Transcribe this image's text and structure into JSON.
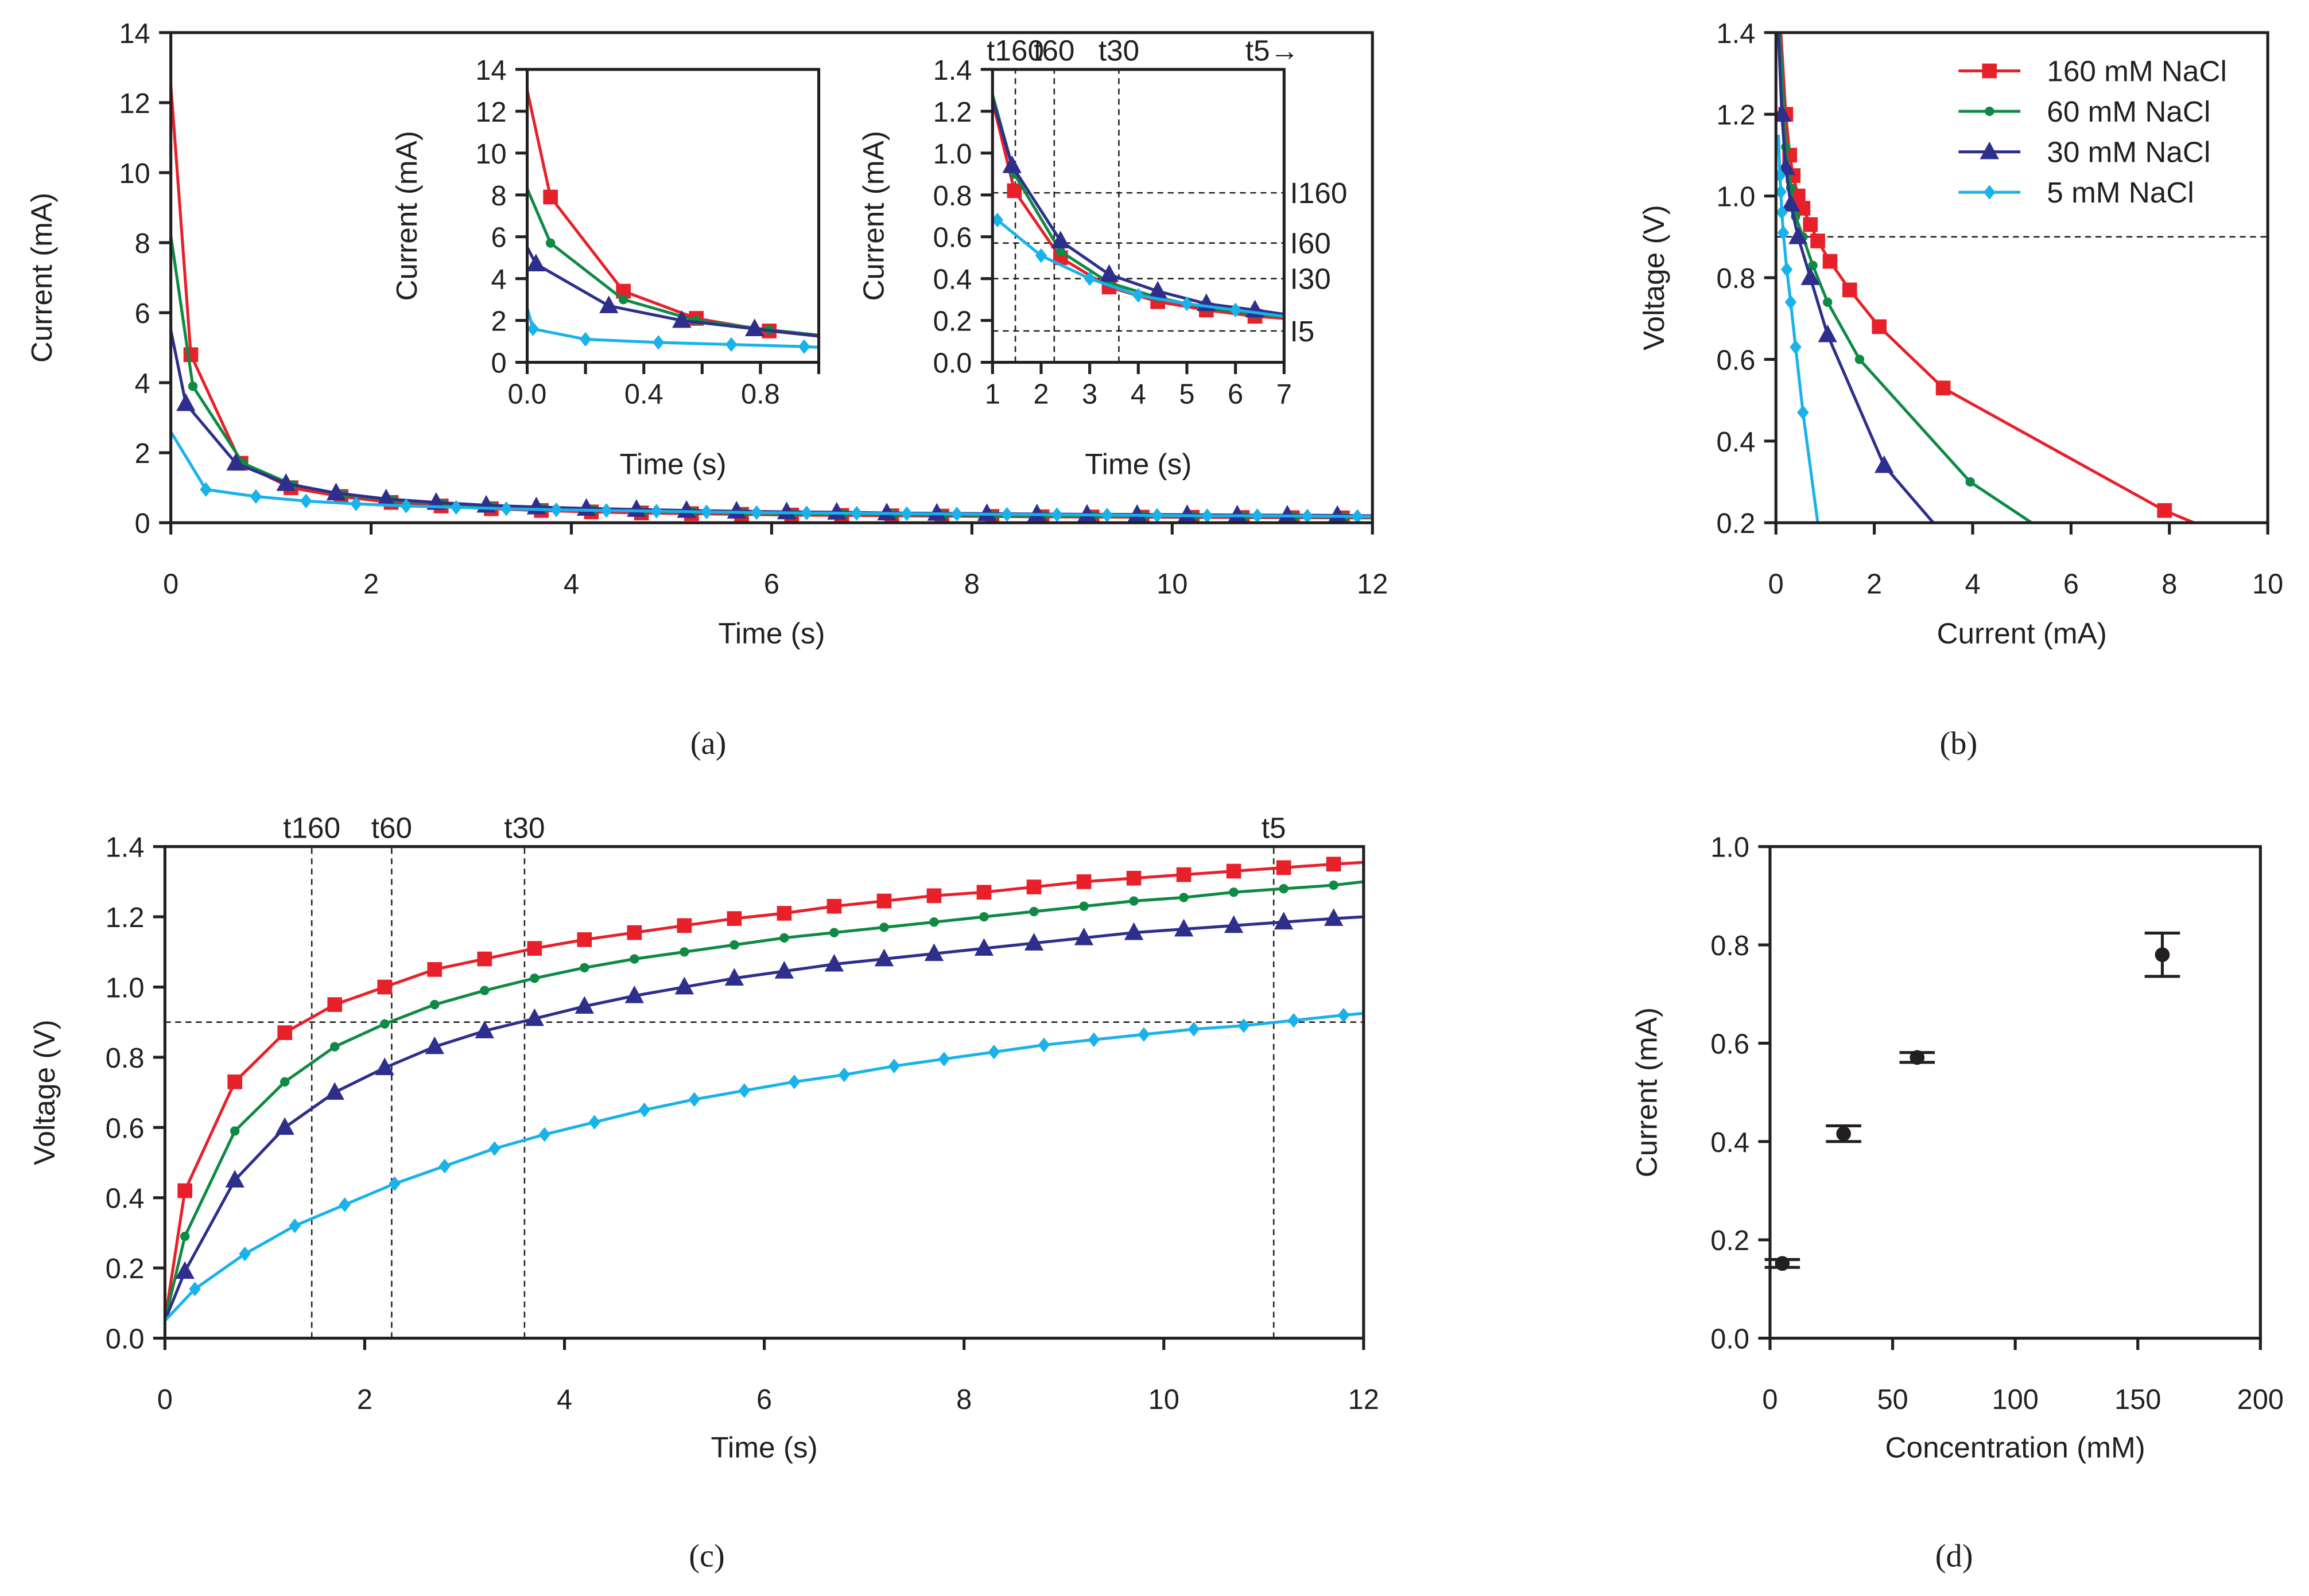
{
  "chart_data": [
    {
      "id": "a",
      "type": "line",
      "caption": "(a)",
      "xlabel": "Time (s)",
      "ylabel": "Current (mA)",
      "xlim": [
        0,
        12
      ],
      "ylim": [
        0,
        14
      ],
      "xticks": [
        "0",
        "2",
        "4",
        "6",
        "8",
        "10",
        "12"
      ],
      "yticks": [
        "0",
        "2",
        "4",
        "6",
        "8",
        "10",
        "12",
        "14"
      ],
      "series": [
        {
          "name": "160 mM NaCl",
          "color": "#e8202a",
          "marker": "square",
          "start": [
            0,
            12.5
          ],
          "end": [
            12,
            0.14
          ],
          "x": {
            "start": 0.2,
            "step": 0.5
          },
          "y": [
            4.8,
            1.7,
            1.0,
            0.75,
            0.58,
            0.48,
            0.4,
            0.35,
            0.31,
            0.28,
            0.26,
            0.24,
            0.22,
            0.21,
            0.2,
            0.19,
            0.18,
            0.17,
            0.165,
            0.16,
            0.155,
            0.15,
            0.145,
            0.14
          ]
        },
        {
          "name": "60 mM NaCl",
          "color": "#0f8a45",
          "marker": "circle",
          "start": [
            0,
            8.2
          ],
          "end": [
            12,
            0.16
          ],
          "x": {
            "start": 0.22,
            "step": 0.5
          },
          "y": [
            3.9,
            1.7,
            1.08,
            0.8,
            0.64,
            0.54,
            0.46,
            0.41,
            0.37,
            0.33,
            0.3,
            0.28,
            0.26,
            0.25,
            0.23,
            0.22,
            0.21,
            0.2,
            0.19,
            0.185,
            0.18,
            0.175,
            0.17,
            0.165
          ]
        },
        {
          "name": "30 mM NaCl",
          "color": "#2e2f8c",
          "marker": "triangle",
          "start": [
            0,
            5.5
          ],
          "end": [
            12,
            0.2
          ],
          "x": {
            "start": 0.15,
            "step": 0.5
          },
          "y": [
            3.4,
            1.7,
            1.12,
            0.85,
            0.68,
            0.58,
            0.5,
            0.45,
            0.41,
            0.38,
            0.35,
            0.33,
            0.31,
            0.3,
            0.28,
            0.27,
            0.26,
            0.25,
            0.24,
            0.235,
            0.23,
            0.22,
            0.215,
            0.21
          ]
        },
        {
          "name": "5 mM NaCl",
          "color": "#19b2ea",
          "marker": "diamond",
          "start": [
            0,
            2.6
          ],
          "end": [
            12,
            0.18
          ],
          "x": {
            "start": 0.35,
            "step": 0.5
          },
          "y": [
            0.95,
            0.75,
            0.62,
            0.54,
            0.48,
            0.44,
            0.4,
            0.37,
            0.35,
            0.33,
            0.31,
            0.29,
            0.28,
            0.27,
            0.26,
            0.25,
            0.24,
            0.23,
            0.22,
            0.21,
            0.2,
            0.2,
            0.19,
            0.18
          ]
        }
      ]
    },
    {
      "id": "a-inset-early",
      "type": "line",
      "xlabel": "Time (s)",
      "ylabel": "Current (mA)",
      "xlim": [
        0,
        1
      ],
      "ylim": [
        0,
        14
      ],
      "xticks": [
        "0.0",
        "0.4",
        "0.8"
      ],
      "xminor": [
        0.2,
        0.6,
        1.0
      ],
      "yticks": [
        "0",
        "2",
        "4",
        "6",
        "8",
        "10",
        "12",
        "14"
      ],
      "series": [
        {
          "name": "160 mM NaCl",
          "color": "#e8202a",
          "marker": "square",
          "start": [
            0,
            13
          ],
          "end": [
            1,
            1.25
          ],
          "x": [
            0.08,
            0.33,
            0.58,
            0.83
          ],
          "y": [
            7.9,
            3.4,
            2.1,
            1.5
          ]
        },
        {
          "name": "60 mM NaCl",
          "color": "#0f8a45",
          "marker": "circle",
          "start": [
            0,
            8.3
          ],
          "end": [
            1,
            1.3
          ],
          "x": [
            0.08,
            0.33,
            0.58,
            0.83
          ],
          "y": [
            5.7,
            3.0,
            2.0,
            1.55
          ]
        },
        {
          "name": "30 mM NaCl",
          "color": "#2e2f8c",
          "marker": "triangle",
          "start": [
            0,
            5.5
          ],
          "end": [
            1,
            1.25
          ],
          "x": [
            0.03,
            0.28,
            0.53,
            0.78
          ],
          "y": [
            4.7,
            2.7,
            2.0,
            1.6
          ]
        },
        {
          "name": "5 mM NaCl",
          "color": "#19b2ea",
          "marker": "diamond",
          "start": [
            0,
            2.6
          ],
          "end": [
            1,
            0.72
          ],
          "x": [
            0.02,
            0.2,
            0.45,
            0.7,
            0.95
          ],
          "y": [
            1.6,
            1.1,
            0.95,
            0.85,
            0.75
          ]
        }
      ]
    },
    {
      "id": "a-inset-late",
      "type": "line",
      "xlabel": "Time (s)",
      "ylabel": "Current (mA)",
      "xlim": [
        1,
        7
      ],
      "ylim": [
        0,
        1.4
      ],
      "xticks": [
        "1",
        "2",
        "3",
        "4",
        "5",
        "6",
        "7"
      ],
      "yticks": [
        "0.0",
        "0.2",
        "0.4",
        "0.6",
        "0.8",
        "1.0",
        "1.2",
        "1.4"
      ],
      "hlines": [
        {
          "y": 0.81,
          "label": "I160"
        },
        {
          "y": 0.57,
          "label": "I60"
        },
        {
          "y": 0.4,
          "label": "I30"
        },
        {
          "y": 0.15,
          "label": "I5"
        }
      ],
      "vlines": [
        {
          "x": 1.47,
          "label": "t160"
        },
        {
          "x": 2.27,
          "label": "t60"
        },
        {
          "x": 3.6,
          "label": "t30"
        }
      ],
      "top_note": "t5→",
      "series": [
        {
          "name": "160 mM NaCl",
          "color": "#e8202a",
          "marker": "square",
          "start": [
            1,
            1.25
          ],
          "end": [
            7,
            0.21
          ],
          "x": [
            1.45,
            2.4,
            3.4,
            4.4,
            5.4,
            6.4
          ],
          "y": [
            0.82,
            0.5,
            0.36,
            0.29,
            0.25,
            0.22
          ]
        },
        {
          "name": "60 mM NaCl",
          "color": "#0f8a45",
          "marker": "circle",
          "start": [
            1,
            1.28
          ],
          "end": [
            7,
            0.22
          ],
          "x": [
            1.45,
            2.4,
            3.4,
            4.4,
            5.4,
            6.4
          ],
          "y": [
            0.9,
            0.53,
            0.38,
            0.31,
            0.26,
            0.23
          ]
        },
        {
          "name": "30 mM NaCl",
          "color": "#2e2f8c",
          "marker": "triangle",
          "start": [
            1,
            1.26
          ],
          "end": [
            7,
            0.23
          ],
          "x": [
            1.4,
            2.4,
            3.4,
            4.4,
            5.4,
            6.4
          ],
          "y": [
            0.94,
            0.58,
            0.42,
            0.34,
            0.28,
            0.25
          ]
        },
        {
          "name": "5 mM NaCl",
          "color": "#19b2ea",
          "marker": "diamond",
          "start": [
            1,
            0.69
          ],
          "end": [
            7,
            0.22
          ],
          "x": [
            1.1,
            2.0,
            3.0,
            4.0,
            5.0,
            6.0
          ],
          "y": [
            0.68,
            0.51,
            0.4,
            0.32,
            0.28,
            0.25
          ]
        }
      ]
    },
    {
      "id": "b",
      "type": "line",
      "caption": "(b)",
      "xlabel": "Current (mA)",
      "ylabel": "Voltage (V)",
      "xlim": [
        0,
        10
      ],
      "ylim": [
        0.2,
        1.4
      ],
      "xticks": [
        "0",
        "2",
        "4",
        "6",
        "8",
        "10"
      ],
      "yticks": [
        "0.2",
        "0.4",
        "0.6",
        "0.8",
        "1.0",
        "1.2",
        "1.4"
      ],
      "hlines": [
        {
          "y": 0.9,
          "label": ""
        }
      ],
      "legend": "top-right",
      "series": [
        {
          "name": "160 mM NaCl",
          "color": "#e8202a",
          "marker": "square",
          "start": [
            8.5,
            0.2
          ],
          "end": [
            0.1,
            1.4
          ],
          "x": [
            7.9,
            3.4,
            2.1,
            1.5,
            1.1,
            0.85,
            0.7,
            0.55,
            0.45,
            0.35,
            0.28,
            0.2
          ],
          "y": [
            0.23,
            0.53,
            0.68,
            0.77,
            0.84,
            0.89,
            0.93,
            0.97,
            1.0,
            1.05,
            1.1,
            1.2
          ]
        },
        {
          "name": "60 mM NaCl",
          "color": "#0f8a45",
          "marker": "circle",
          "start": [
            5.2,
            0.2
          ],
          "end": [
            0.08,
            1.4
          ],
          "x": [
            3.95,
            1.7,
            1.05,
            0.75,
            0.55,
            0.4,
            0.3,
            0.2
          ],
          "y": [
            0.3,
            0.6,
            0.74,
            0.83,
            0.9,
            0.95,
            1.02,
            1.12
          ]
        },
        {
          "name": "30 mM NaCl",
          "color": "#2e2f8c",
          "marker": "triangle",
          "start": [
            3.2,
            0.2
          ],
          "end": [
            0.05,
            1.4
          ],
          "x": [
            2.2,
            1.05,
            0.7,
            0.45,
            0.3,
            0.2,
            0.12
          ],
          "y": [
            0.34,
            0.66,
            0.8,
            0.9,
            0.98,
            1.07,
            1.2
          ]
        },
        {
          "name": "5 mM NaCl",
          "color": "#19b2ea",
          "marker": "diamond",
          "start": [
            0.85,
            0.2
          ],
          "end": [
            0.05,
            1.15
          ],
          "x": [
            0.55,
            0.4,
            0.3,
            0.22,
            0.15,
            0.12,
            0.1,
            0.08
          ],
          "y": [
            0.47,
            0.63,
            0.74,
            0.82,
            0.91,
            0.96,
            1.01,
            1.05
          ]
        }
      ]
    },
    {
      "id": "c",
      "type": "line",
      "caption": "(c)",
      "xlabel": "Time (s)",
      "ylabel": "Voltage (V)",
      "xlim": [
        0,
        12
      ],
      "ylim": [
        0,
        1.4
      ],
      "xticks": [
        "0",
        "2",
        "4",
        "6",
        "8",
        "10",
        "12"
      ],
      "yticks": [
        "0.0",
        "0.2",
        "0.4",
        "0.6",
        "0.8",
        "1.0",
        "1.2",
        "1.4"
      ],
      "hlines": [
        {
          "y": 0.9,
          "label": ""
        }
      ],
      "vlines": [
        {
          "x": 1.47,
          "label": "t160"
        },
        {
          "x": 2.27,
          "label": "t60"
        },
        {
          "x": 3.6,
          "label": "t30"
        },
        {
          "x": 11.1,
          "label": "t5"
        }
      ],
      "series": [
        {
          "name": "160 mM NaCl",
          "color": "#e8202a",
          "marker": "square",
          "start": [
            0,
            0.05
          ],
          "end": [
            12,
            1.355
          ],
          "x": {
            "start": 0.2,
            "step": 0.5
          },
          "y": [
            0.42,
            0.73,
            0.87,
            0.95,
            1.0,
            1.05,
            1.08,
            1.11,
            1.135,
            1.155,
            1.175,
            1.195,
            1.21,
            1.23,
            1.245,
            1.26,
            1.27,
            1.285,
            1.3,
            1.31,
            1.32,
            1.33,
            1.34,
            1.35
          ]
        },
        {
          "name": "60 mM NaCl",
          "color": "#0f8a45",
          "marker": "circle",
          "start": [
            0,
            0.05
          ],
          "end": [
            12,
            1.3
          ],
          "x": {
            "start": 0.2,
            "step": 0.5
          },
          "y": [
            0.29,
            0.59,
            0.73,
            0.83,
            0.895,
            0.95,
            0.99,
            1.025,
            1.055,
            1.08,
            1.1,
            1.12,
            1.14,
            1.155,
            1.17,
            1.185,
            1.2,
            1.215,
            1.23,
            1.245,
            1.255,
            1.27,
            1.28,
            1.29
          ]
        },
        {
          "name": "30 mM NaCl",
          "color": "#2e2f8c",
          "marker": "triangle",
          "start": [
            0,
            0.05
          ],
          "end": [
            12,
            1.2
          ],
          "x": {
            "start": 0.2,
            "step": 0.5
          },
          "y": [
            0.19,
            0.45,
            0.6,
            0.7,
            0.77,
            0.83,
            0.875,
            0.91,
            0.945,
            0.975,
            1.0,
            1.025,
            1.045,
            1.065,
            1.08,
            1.095,
            1.11,
            1.125,
            1.14,
            1.155,
            1.165,
            1.175,
            1.185,
            1.195
          ]
        },
        {
          "name": "5 mM NaCl",
          "color": "#19b2ea",
          "marker": "diamond",
          "start": [
            0,
            0.05
          ],
          "end": [
            12,
            0.925
          ],
          "x": {
            "start": 0.3,
            "step": 0.5
          },
          "y": [
            0.14,
            0.24,
            0.32,
            0.38,
            0.44,
            0.49,
            0.54,
            0.58,
            0.615,
            0.65,
            0.68,
            0.705,
            0.73,
            0.75,
            0.775,
            0.795,
            0.815,
            0.835,
            0.85,
            0.865,
            0.88,
            0.89,
            0.905,
            0.92
          ]
        }
      ]
    },
    {
      "id": "d",
      "type": "scatter",
      "caption": "(d)",
      "xlabel": "Concentration (mM)",
      "ylabel": "Current (mA)",
      "xlim": [
        0,
        200
      ],
      "ylim": [
        0,
        1.0
      ],
      "xticks": [
        "0",
        "50",
        "100",
        "150",
        "200"
      ],
      "yticks": [
        "0.0",
        "0.2",
        "0.4",
        "0.6",
        "0.8",
        "1.0"
      ],
      "points": [
        {
          "x": 5,
          "y": 0.152,
          "err": 0.008
        },
        {
          "x": 30,
          "y": 0.416,
          "err": 0.016
        },
        {
          "x": 60,
          "y": 0.571,
          "err": 0.01
        },
        {
          "x": 160,
          "y": 0.78,
          "err": 0.044
        }
      ]
    }
  ]
}
